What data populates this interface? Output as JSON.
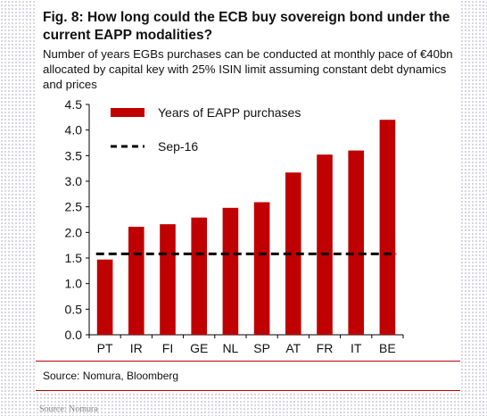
{
  "title": "Fig. 8: How long could the ECB buy sovereign bond under the current EAPP modalities?",
  "subtitle": "Number of years EGBs purchases can be conducted at monthly pace of €40bn allocated by capital key with 25% ISIN limit assuming constant debt dynamics and prices",
  "source": "Source: Nomura, Bloomberg",
  "footnote": "Source: Nomura",
  "chart_data": {
    "type": "bar",
    "categories": [
      "PT",
      "IR",
      "FI",
      "GE",
      "NL",
      "SP",
      "AT",
      "FR",
      "IT",
      "BE"
    ],
    "series": [
      {
        "name": "Years of EAPP purchases",
        "values": [
          1.47,
          2.11,
          2.16,
          2.29,
          2.48,
          2.59,
          3.17,
          3.52,
          3.6,
          4.2
        ],
        "color": "#c00000"
      }
    ],
    "reference_lines": [
      {
        "name": "Sep-16",
        "value": 1.58,
        "style": "dashed",
        "color": "#000000"
      }
    ],
    "ylim": [
      0.0,
      4.5
    ],
    "yticks": [
      "0.0",
      "0.5",
      "1.0",
      "1.5",
      "2.0",
      "2.5",
      "3.0",
      "3.5",
      "4.0",
      "4.5"
    ],
    "xlabel": "",
    "ylabel": "",
    "legend": "top-left",
    "grid": false
  },
  "colors": {
    "accent": "#c00000",
    "text": "#111111",
    "footnote": "#8a8a8a"
  }
}
